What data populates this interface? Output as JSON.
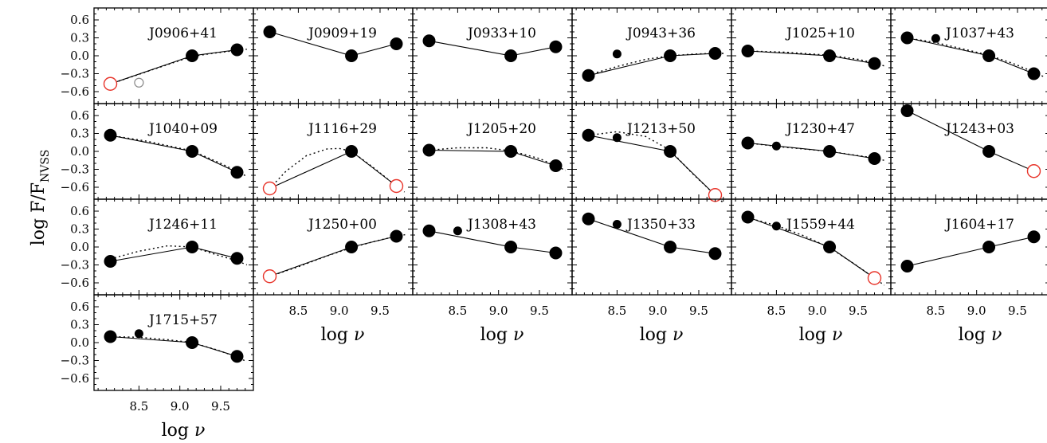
{
  "chart_data": {
    "type": "scatter",
    "ylabel": "log F/F",
    "ylabel_subscript": "NVSS",
    "xlabel": "log",
    "xlabel_symbol": "ν",
    "xlim": [
      7.95,
      9.9
    ],
    "ylim": [
      -0.8,
      0.8
    ],
    "yticks": [
      0.6,
      0.3,
      0.0,
      -0.3,
      -0.6
    ],
    "ytick_labels": [
      "0.6",
      "0.3",
      "0.0",
      "−0.3",
      "−0.6"
    ],
    "xticks": [
      8.5,
      9.0,
      9.5
    ],
    "xtick_labels": [
      "8.5",
      "9.0",
      "9.5"
    ],
    "colors": {
      "upper_limit": "#e8352b",
      "line": "#000000",
      "secondary_point": "#888888"
    },
    "panels": [
      {
        "name": "J0906+41",
        "main": [
          [
            8.15,
            -0.47,
            "limit"
          ],
          [
            9.15,
            0.0,
            "det"
          ],
          [
            9.7,
            0.1,
            "det"
          ]
        ],
        "extra": [
          [
            8.5,
            -0.45,
            "open"
          ]
        ],
        "dotted": [
          [
            8.15,
            -0.47
          ],
          [
            8.5,
            -0.31
          ],
          [
            8.8,
            -0.17
          ],
          [
            9.15,
            -0.01
          ],
          [
            9.45,
            0.05
          ],
          [
            9.7,
            0.09
          ],
          [
            9.82,
            0.11
          ]
        ]
      },
      {
        "name": "J0909+19",
        "main": [
          [
            8.15,
            0.4,
            "det"
          ],
          [
            9.15,
            0.0,
            "det"
          ],
          [
            9.7,
            0.2,
            "det"
          ]
        ],
        "extra": [],
        "dotted": []
      },
      {
        "name": "J0933+10",
        "main": [
          [
            8.15,
            0.25,
            "det"
          ],
          [
            9.15,
            0.0,
            "det"
          ],
          [
            9.7,
            0.15,
            "det"
          ]
        ],
        "extra": [],
        "dotted": []
      },
      {
        "name": "J0943+36",
        "main": [
          [
            8.15,
            -0.33,
            "det"
          ],
          [
            9.15,
            0.0,
            "det"
          ],
          [
            9.7,
            0.04,
            "det"
          ]
        ],
        "extra": [
          [
            8.5,
            0.03,
            "small"
          ]
        ],
        "dotted": [
          [
            8.15,
            -0.32
          ],
          [
            8.5,
            -0.18
          ],
          [
            8.85,
            -0.06
          ],
          [
            9.15,
            0.0
          ],
          [
            9.45,
            0.03
          ],
          [
            9.7,
            0.04
          ],
          [
            9.82,
            0.04
          ]
        ]
      },
      {
        "name": "J1025+10",
        "main": [
          [
            8.15,
            0.08,
            "det"
          ],
          [
            9.15,
            0.0,
            "det"
          ],
          [
            9.7,
            -0.13,
            "det"
          ]
        ],
        "extra": [],
        "dotted": [
          [
            8.15,
            0.08
          ],
          [
            8.6,
            0.06
          ],
          [
            9.15,
            0.01
          ],
          [
            9.5,
            -0.06
          ],
          [
            9.7,
            -0.12
          ],
          [
            9.82,
            -0.17
          ]
        ]
      },
      {
        "name": "J1037+43",
        "main": [
          [
            8.15,
            0.3,
            "det"
          ],
          [
            9.15,
            0.0,
            "det"
          ],
          [
            9.7,
            -0.3,
            "det"
          ]
        ],
        "extra": [
          [
            8.5,
            0.29,
            "small"
          ]
        ],
        "dotted": [
          [
            8.15,
            0.3
          ],
          [
            8.5,
            0.22
          ],
          [
            8.85,
            0.11
          ],
          [
            9.15,
            0.01
          ],
          [
            9.45,
            -0.13
          ],
          [
            9.7,
            -0.27
          ],
          [
            9.82,
            -0.35
          ]
        ]
      },
      {
        "name": "J1040+09",
        "main": [
          [
            8.15,
            0.27,
            "det"
          ],
          [
            9.15,
            0.0,
            "det"
          ],
          [
            9.7,
            -0.35,
            "det"
          ]
        ],
        "extra": [],
        "dotted": [
          [
            8.15,
            0.27
          ],
          [
            8.6,
            0.17
          ],
          [
            9.15,
            0.01
          ],
          [
            9.5,
            -0.2
          ],
          [
            9.7,
            -0.33
          ],
          [
            9.82,
            -0.42
          ]
        ]
      },
      {
        "name": "J1116+29",
        "main": [
          [
            8.15,
            -0.62,
            "limit"
          ],
          [
            9.15,
            0.0,
            "det"
          ],
          [
            9.7,
            -0.58,
            "limit"
          ]
        ],
        "extra": [],
        "dotted": [
          [
            8.15,
            -0.62
          ],
          [
            8.35,
            -0.33
          ],
          [
            8.6,
            -0.07
          ],
          [
            8.85,
            0.04
          ],
          [
            9.0,
            0.05
          ],
          [
            9.15,
            0.0
          ],
          [
            9.4,
            -0.25
          ],
          [
            9.7,
            -0.58
          ],
          [
            9.8,
            -0.68
          ]
        ]
      },
      {
        "name": "J1205+20",
        "main": [
          [
            8.15,
            0.02,
            "det"
          ],
          [
            9.15,
            0.0,
            "det"
          ],
          [
            9.7,
            -0.24,
            "det"
          ]
        ],
        "extra": [],
        "dotted": [
          [
            8.15,
            0.02
          ],
          [
            8.5,
            0.06
          ],
          [
            8.85,
            0.06
          ],
          [
            9.15,
            0.01
          ],
          [
            9.5,
            -0.12
          ],
          [
            9.7,
            -0.24
          ],
          [
            9.82,
            -0.32
          ]
        ]
      },
      {
        "name": "J1213+50",
        "main": [
          [
            8.15,
            0.27,
            "det"
          ],
          [
            9.15,
            0.0,
            "det"
          ],
          [
            9.7,
            -0.73,
            "limit"
          ]
        ],
        "extra": [
          [
            8.5,
            0.23,
            "small"
          ]
        ],
        "dotted": [
          [
            8.15,
            0.27
          ],
          [
            8.5,
            0.33
          ],
          [
            8.85,
            0.25
          ],
          [
            9.15,
            0.02
          ],
          [
            9.4,
            -0.34
          ],
          [
            9.7,
            -0.73
          ],
          [
            9.8,
            -0.86
          ]
        ]
      },
      {
        "name": "J1230+47",
        "main": [
          [
            8.15,
            0.14,
            "det"
          ],
          [
            9.15,
            0.0,
            "det"
          ],
          [
            9.7,
            -0.12,
            "det"
          ]
        ],
        "extra": [
          [
            8.5,
            0.09,
            "small"
          ]
        ],
        "dotted": [
          [
            8.15,
            0.14
          ],
          [
            8.6,
            0.07
          ],
          [
            9.15,
            0.0
          ],
          [
            9.5,
            -0.07
          ],
          [
            9.7,
            -0.11
          ],
          [
            9.82,
            -0.15
          ]
        ]
      },
      {
        "name": "J1243+03",
        "main": [
          [
            8.15,
            0.68,
            "det"
          ],
          [
            9.15,
            0.0,
            "det"
          ],
          [
            9.7,
            -0.33,
            "limit"
          ]
        ],
        "extra": [],
        "dotted": []
      },
      {
        "name": "J1246+11",
        "main": [
          [
            8.15,
            -0.24,
            "det"
          ],
          [
            9.15,
            0.0,
            "det"
          ],
          [
            9.7,
            -0.19,
            "det"
          ]
        ],
        "extra": [],
        "dotted": [
          [
            8.15,
            -0.2
          ],
          [
            8.5,
            -0.07
          ],
          [
            8.85,
            0.02
          ],
          [
            9.15,
            0.0
          ],
          [
            9.45,
            -0.13
          ],
          [
            9.7,
            -0.23
          ],
          [
            9.82,
            -0.3
          ]
        ]
      },
      {
        "name": "J1250+00",
        "main": [
          [
            8.15,
            -0.49,
            "limit"
          ],
          [
            9.15,
            0.0,
            "det"
          ],
          [
            9.7,
            0.18,
            "det"
          ]
        ],
        "extra": [],
        "dotted": [
          [
            8.15,
            -0.49
          ],
          [
            8.5,
            -0.33
          ],
          [
            8.85,
            -0.15
          ],
          [
            9.15,
            -0.01
          ],
          [
            9.45,
            0.1
          ],
          [
            9.7,
            0.18
          ],
          [
            9.82,
            0.21
          ]
        ]
      },
      {
        "name": "J1308+43",
        "main": [
          [
            8.15,
            0.27,
            "det"
          ],
          [
            9.15,
            0.0,
            "det"
          ],
          [
            9.7,
            -0.1,
            "det"
          ]
        ],
        "extra": [
          [
            8.5,
            0.27,
            "small"
          ]
        ],
        "dotted": []
      },
      {
        "name": "J1350+33",
        "main": [
          [
            8.15,
            0.47,
            "det"
          ],
          [
            9.15,
            0.0,
            "det"
          ],
          [
            9.7,
            -0.11,
            "det"
          ]
        ],
        "extra": [
          [
            8.5,
            0.38,
            "small"
          ]
        ],
        "dotted": []
      },
      {
        "name": "J1559+44",
        "main": [
          [
            8.15,
            0.5,
            "det"
          ],
          [
            9.15,
            0.0,
            "det"
          ],
          [
            9.7,
            -0.52,
            "limit"
          ]
        ],
        "extra": [
          [
            8.5,
            0.35,
            "small"
          ]
        ],
        "dotted": [
          [
            8.15,
            0.49
          ],
          [
            8.5,
            0.36
          ],
          [
            8.85,
            0.18
          ],
          [
            9.15,
            -0.01
          ],
          [
            9.45,
            -0.28
          ],
          [
            9.7,
            -0.52
          ],
          [
            9.82,
            -0.64
          ]
        ]
      },
      {
        "name": "J1604+17",
        "main": [
          [
            8.15,
            -0.32,
            "det"
          ],
          [
            9.15,
            0.0,
            "det"
          ],
          [
            9.7,
            0.17,
            "det"
          ]
        ],
        "extra": [],
        "dotted": []
      },
      {
        "name": "J1715+57",
        "main": [
          [
            8.15,
            0.1,
            "det"
          ],
          [
            9.15,
            0.0,
            "det"
          ],
          [
            9.7,
            -0.23,
            "det"
          ]
        ],
        "extra": [
          [
            8.5,
            0.15,
            "small"
          ]
        ],
        "dotted": [
          [
            8.15,
            0.1
          ],
          [
            8.5,
            0.09
          ],
          [
            8.85,
            0.05
          ],
          [
            9.15,
            0.0
          ],
          [
            9.45,
            -0.12
          ],
          [
            9.7,
            -0.24
          ],
          [
            9.82,
            -0.32
          ]
        ]
      }
    ]
  }
}
